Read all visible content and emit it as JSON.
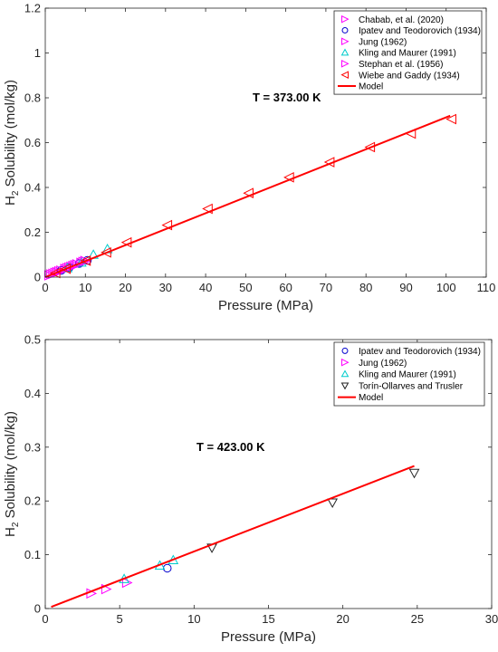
{
  "chart_data": [
    {
      "type": "scatter",
      "annotation": "T = 373.00 K",
      "xlabel": "Pressure (MPa)",
      "ylabel": "Solubility (mol/kg)",
      "ylabel_prefix": "H",
      "ylabel_sub": "2",
      "xlim": [
        0,
        110
      ],
      "ylim": [
        0,
        1.2
      ],
      "xticks": [
        0,
        10,
        20,
        30,
        40,
        50,
        60,
        70,
        80,
        90,
        100,
        110
      ],
      "yticks": [
        0,
        0.2,
        0.4,
        0.6,
        0.8,
        1,
        1.2
      ],
      "ytick_labels": [
        "0",
        "0.2",
        "0.4",
        "0.6",
        "0.8",
        "1",
        "1.2"
      ],
      "legend_position": "top-right",
      "series": [
        {
          "name": "Chabab, et al. (2020)",
          "marker": "triangle-right",
          "color": "#ff00ff",
          "x": [
            1.5,
            2.5,
            3.5,
            5.0,
            6.5,
            8.0,
            9.5
          ],
          "y": [
            0.012,
            0.019,
            0.026,
            0.036,
            0.046,
            0.057,
            0.068
          ]
        },
        {
          "name": "Ipatev and Teodorovich (1934)",
          "marker": "circle",
          "color": "#0000cc",
          "x": [
            4.0,
            6.0,
            8.5,
            10.5
          ],
          "y": [
            0.03,
            0.043,
            0.061,
            0.075
          ]
        },
        {
          "name": "Jung (1962)",
          "marker": "triangle-right",
          "color": "#ff00ff",
          "x": [
            1.0,
            2.0,
            3.0,
            4.0,
            5.0,
            6.0,
            7.0,
            8.0,
            9.0,
            10.0
          ],
          "y": [
            0.008,
            0.015,
            0.022,
            0.029,
            0.036,
            0.043,
            0.05,
            0.057,
            0.064,
            0.071
          ]
        },
        {
          "name": "Kling and Maurer (1991)",
          "marker": "triangle-up",
          "color": "#00cccc",
          "x": [
            5.5,
            9.0,
            12.0,
            15.5
          ],
          "y": [
            0.04,
            0.065,
            0.1,
            0.125
          ]
        },
        {
          "name": "Stephan et al. (1956)",
          "marker": "triangle-right",
          "color": "#ff00ff",
          "x": [
            3.0,
            5.5,
            7.5,
            10.0
          ],
          "y": [
            0.022,
            0.04,
            0.054,
            0.072
          ]
        },
        {
          "name": "Wiebe and Gaddy (1934)",
          "marker": "triangle-left",
          "color": "#ff0000",
          "x": [
            2.5,
            5.1,
            10.1,
            15.2,
            20.3,
            30.4,
            40.5,
            50.7,
            60.8,
            70.9,
            81.0,
            91.2,
            101.3
          ],
          "y": [
            0.018,
            0.037,
            0.073,
            0.11,
            0.155,
            0.232,
            0.305,
            0.375,
            0.445,
            0.513,
            0.58,
            0.64,
            0.705
          ]
        },
        {
          "name": "Model",
          "type": "line",
          "color": "#ff0000",
          "x": [
            0,
            101
          ],
          "y": [
            0,
            0.72
          ]
        }
      ]
    },
    {
      "type": "scatter",
      "annotation": "T = 423.00 K",
      "xlabel": "Pressure (MPa)",
      "ylabel": "Solubility (mol/kg)",
      "ylabel_prefix": "H",
      "ylabel_sub": "2",
      "xlim": [
        0,
        30
      ],
      "ylim": [
        0,
        0.5
      ],
      "xticks": [
        0,
        5,
        10,
        15,
        20,
        25,
        30
      ],
      "yticks": [
        0,
        0.1,
        0.2,
        0.3,
        0.4,
        0.5
      ],
      "ytick_labels": [
        "0",
        "0.1",
        "0.2",
        "0.3",
        "0.4",
        "0.5"
      ],
      "legend_position": "top-right",
      "series": [
        {
          "name": "Ipatev and Teodorovich (1934)",
          "marker": "circle",
          "color": "#0000cc",
          "x": [
            8.2
          ],
          "y": [
            0.075
          ]
        },
        {
          "name": "Jung (1962)",
          "marker": "triangle-right",
          "color": "#ff00ff",
          "x": [
            3.1,
            4.1,
            5.5
          ],
          "y": [
            0.028,
            0.036,
            0.048
          ]
        },
        {
          "name": "Kling and Maurer (1991)",
          "marker": "triangle-up",
          "color": "#00cccc",
          "x": [
            5.3,
            7.7,
            8.6
          ],
          "y": [
            0.055,
            0.08,
            0.09
          ]
        },
        {
          "name": "Torín-Ollarves and Trusler",
          "marker": "triangle-down",
          "color": "#222222",
          "x": [
            11.2,
            19.3,
            24.8
          ],
          "y": [
            0.113,
            0.197,
            0.252
          ]
        },
        {
          "name": "Model",
          "type": "line",
          "color": "#ff0000",
          "x": [
            0.4,
            24.8
          ],
          "y": [
            0.003,
            0.265
          ]
        }
      ]
    }
  ]
}
